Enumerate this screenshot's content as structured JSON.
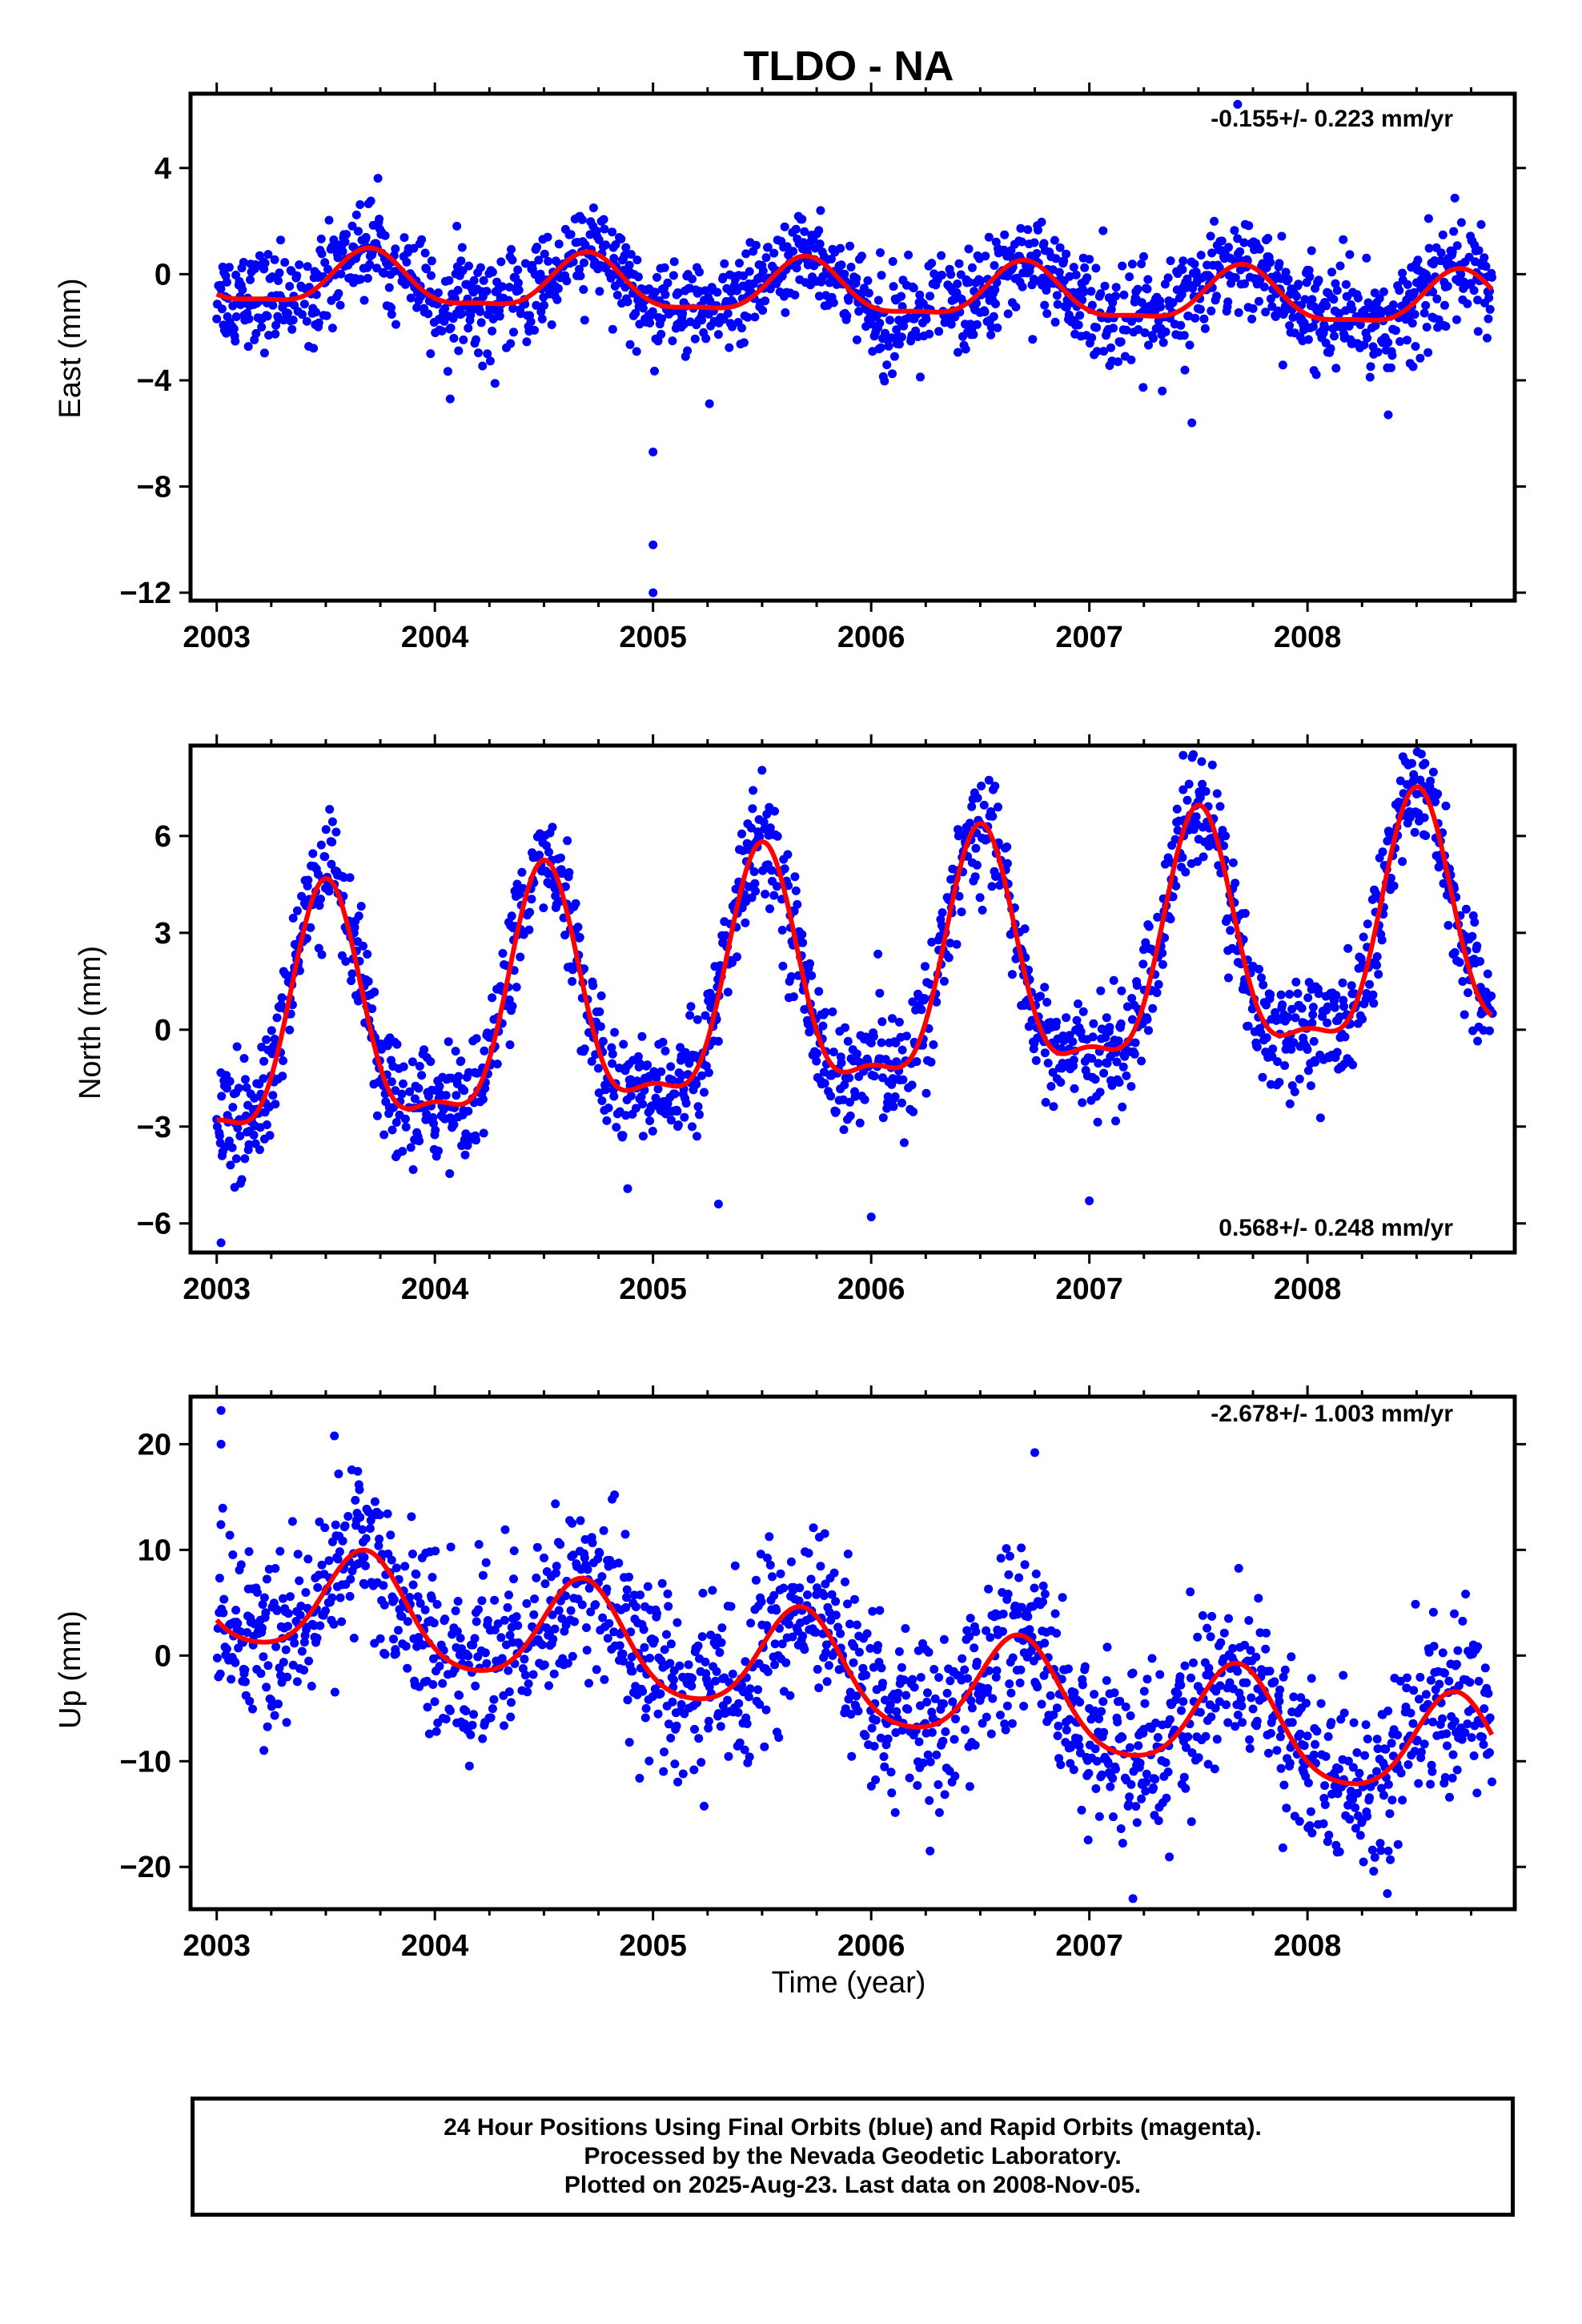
{
  "figure": {
    "title": "TLDO - NA",
    "xlabel": "Time (year)"
  },
  "chart_data": [
    {
      "type": "scatter",
      "name": "east",
      "ylabel": "East (mm)",
      "rate_text": "-0.155+/- 0.223 mm/yr",
      "xlim": [
        2002.88,
        2008.95
      ],
      "ylim": [
        -12.3,
        6.8
      ],
      "yticks": [
        4,
        0,
        -4,
        -8,
        -12
      ],
      "ytick_labels": [
        "4",
        "0",
        "−4",
        "−8",
        "−12"
      ],
      "xticks": [
        2003,
        2004,
        2005,
        2006,
        2007,
        2008
      ],
      "xtick_labels": [
        "2003",
        "2004",
        "2005",
        "2006",
        "2007",
        "2008"
      ],
      "fit_model": {
        "offset": -0.2,
        "trend": -0.155,
        "amplitude": 1.0,
        "peak_phase": 0.7,
        "semi_amplitude": 0.3
      },
      "scatter_sigma": 0.9,
      "fit_color": "#ff0000",
      "point_color": "#0000ff",
      "outliers": [
        [
          2005.0,
          -12.0
        ],
        [
          2005.0,
          -10.2
        ],
        [
          2004.07,
          -4.7
        ],
        [
          2005.0,
          -6.7
        ],
        [
          2008.37,
          -5.3
        ],
        [
          2007.47,
          -5.6
        ],
        [
          2007.68,
          6.4
        ]
      ]
    },
    {
      "type": "scatter",
      "name": "north",
      "ylabel": "North (mm)",
      "rate_text": "0.568+/- 0.248 mm/yr",
      "xlim": [
        2002.88,
        2008.95
      ],
      "ylim": [
        -6.9,
        8.8
      ],
      "yticks": [
        6,
        3,
        0,
        -3,
        -6
      ],
      "ytick_labels": [
        "6",
        "3",
        "0",
        "−3",
        "−6"
      ],
      "xticks": [
        2003,
        2004,
        2005,
        2006,
        2007,
        2008
      ],
      "xtick_labels": [
        "2003",
        "2004",
        "2005",
        "2006",
        "2007",
        "2008"
      ],
      "fit_model": {
        "offset": -0.4,
        "trend": 0.568,
        "amplitude": 3.6,
        "peak_phase": 0.5,
        "semi_amplitude": 1.2
      },
      "scatter_sigma": 0.9,
      "fit_color": "#ff0000",
      "point_color": "#0000ff",
      "outliers": [
        [
          2003.02,
          -6.6
        ],
        [
          2005.3,
          -5.4
        ],
        [
          2006.0,
          -5.8
        ],
        [
          2007.0,
          -5.3
        ],
        [
          2007.43,
          8.5
        ],
        [
          2008.53,
          8.2
        ]
      ]
    },
    {
      "type": "scatter",
      "name": "up",
      "ylabel": "Up (mm)",
      "rate_text": "-2.678+/- 1.003 mm/yr",
      "xlim": [
        2002.88,
        2008.95
      ],
      "ylim": [
        -24,
        24.5
      ],
      "yticks": [
        20,
        10,
        0,
        -10,
        -20
      ],
      "ytick_labels": [
        "20",
        "10",
        "0",
        "−10",
        "−20"
      ],
      "xticks": [
        2003,
        2004,
        2005,
        2006,
        2007,
        2008
      ],
      "xtick_labels": [
        "2003",
        "2004",
        "2005",
        "2006",
        "2007",
        "2008"
      ],
      "fit_model": {
        "offset": 6.0,
        "trend": -2.678,
        "amplitude": 5.0,
        "peak_phase": 0.68,
        "semi_amplitude": 0.8
      },
      "scatter_sigma": 4.0,
      "fit_color": "#ff0000",
      "point_color": "#0000ff",
      "outliers": [
        [
          2003.02,
          23.2
        ],
        [
          2003.02,
          20.0
        ],
        [
          2007.2,
          -23.0
        ],
        [
          2006.75,
          19.2
        ],
        [
          2006.27,
          -18.5
        ],
        [
          2008.37,
          -18.5
        ]
      ]
    }
  ],
  "footer": {
    "line1": "24 Hour Positions Using Final Orbits (blue) and Rapid Orbits (magenta).",
    "line2": "Processed by the Nevada Geodetic Laboratory.",
    "line3": "Plotted on 2025-Aug-23. Last data on 2008-Nov-05."
  }
}
